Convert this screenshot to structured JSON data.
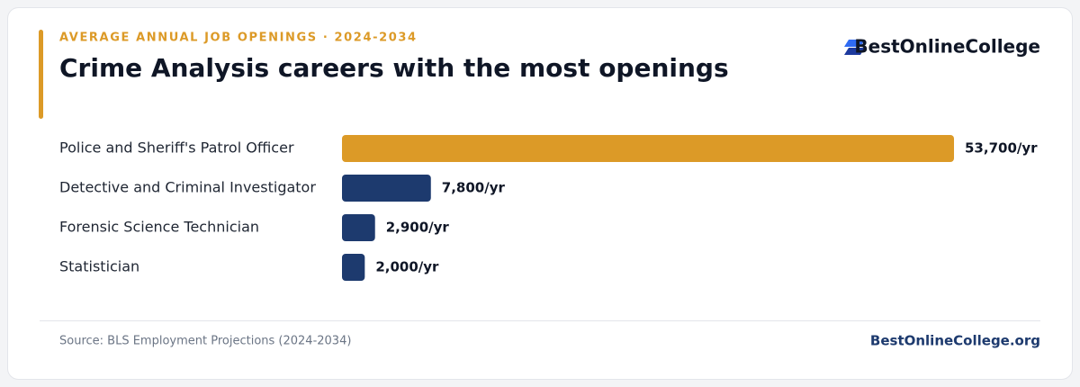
{
  "chart_data": {
    "type": "hbar",
    "eyebrow": "AVERAGE ANNUAL JOB OPENINGS · 2024-2034",
    "title": "Crime Analysis careers with the most openings",
    "brand": "BestOnlineCollege",
    "categories": [
      "Police and Sheriff's Patrol Officer",
      "Detective and Criminal Investigator",
      "Forensic Science Technician",
      "Statistician"
    ],
    "values": [
      53700,
      7800,
      2900,
      2000
    ],
    "value_labels": [
      "53,700/yr",
      "7,800/yr",
      "2,900/yr",
      "2,000/yr"
    ],
    "colors": [
      "#dc9a27",
      "#1d3a6e",
      "#1d3a6e",
      "#1d3a6e"
    ],
    "source": "Source: BLS Employment Projections (2024-2034)",
    "footer_link": "BestOnlineCollege.org"
  }
}
